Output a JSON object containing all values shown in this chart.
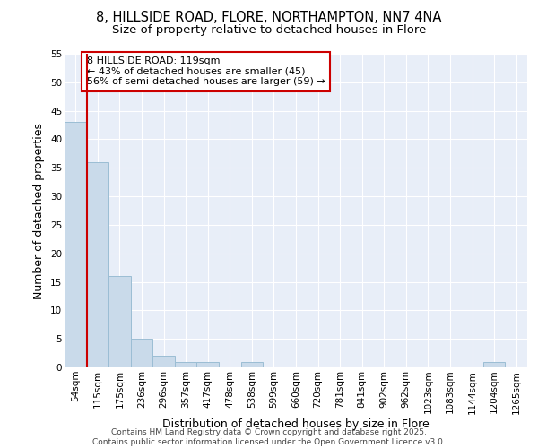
{
  "title_line1": "8, HILLSIDE ROAD, FLORE, NORTHAMPTON, NN7 4NA",
  "title_line2": "Size of property relative to detached houses in Flore",
  "xlabel": "Distribution of detached houses by size in Flore",
  "ylabel": "Number of detached properties",
  "bins": [
    "54sqm",
    "115sqm",
    "175sqm",
    "236sqm",
    "296sqm",
    "357sqm",
    "417sqm",
    "478sqm",
    "538sqm",
    "599sqm",
    "660sqm",
    "720sqm",
    "781sqm",
    "841sqm",
    "902sqm",
    "962sqm",
    "1023sqm",
    "1083sqm",
    "1144sqm",
    "1204sqm",
    "1265sqm"
  ],
  "values": [
    43,
    36,
    16,
    5,
    2,
    1,
    1,
    0,
    1,
    0,
    0,
    0,
    0,
    0,
    0,
    0,
    0,
    0,
    0,
    1,
    0
  ],
  "bar_color": "#c9daea",
  "bar_edge_color": "#9bbdd4",
  "vline_color": "#cc0000",
  "vline_x_index": 1,
  "annotation_text": "8 HILLSIDE ROAD: 119sqm\n← 43% of detached houses are smaller (45)\n56% of semi-detached houses are larger (59) →",
  "annotation_box_facecolor": "white",
  "annotation_box_edgecolor": "#cc0000",
  "ylim": [
    0,
    55
  ],
  "yticks": [
    0,
    5,
    10,
    15,
    20,
    25,
    30,
    35,
    40,
    45,
    50,
    55
  ],
  "background_color": "#e8eef8",
  "grid_color": "#ffffff",
  "footer_text": "Contains HM Land Registry data © Crown copyright and database right 2025.\nContains public sector information licensed under the Open Government Licence v3.0.",
  "title_fontsize": 10.5,
  "subtitle_fontsize": 9.5,
  "axis_label_fontsize": 9,
  "tick_fontsize": 7.5,
  "annotation_fontsize": 8,
  "footer_fontsize": 6.5
}
